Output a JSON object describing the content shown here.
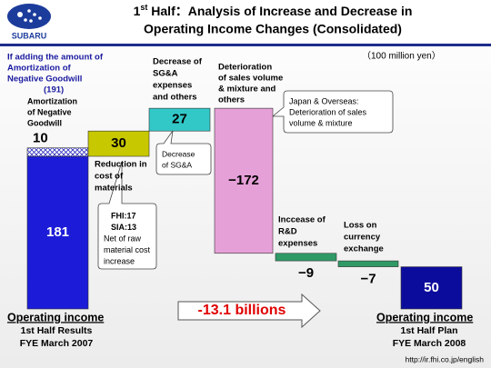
{
  "header": {
    "logo": "SUBARU",
    "title_num": "1",
    "title_sup": "st",
    "title_line1": " Half：Analysis of Increase and Decrease in",
    "title_line2": "Operating Income Changes (Consolidated)"
  },
  "chart_data": {
    "type": "waterfall",
    "unit_label": "（100 million yen）",
    "values": [
      181,
      30,
      27,
      -172,
      -9,
      -7,
      50
    ],
    "value_labels": [
      "181",
      "30",
      "27",
      "−172",
      "−9",
      "−7",
      "50"
    ],
    "kinds": [
      "total",
      "delta",
      "delta",
      "delta",
      "delta",
      "delta",
      "total"
    ],
    "colors": [
      "#1c1cd8",
      "#c8c800",
      "#33c8c8",
      "#e6a0d8",
      "#2f9a66",
      "#2f9a66",
      "#0c0c9c"
    ],
    "amortization": {
      "value": 10,
      "label": "10",
      "lines": [
        "Amortization",
        "of Negative",
        "Goodwill"
      ]
    },
    "goodwill_note": {
      "lines": [
        "If adding the amount of",
        "Amortization of",
        "Negative Goodwill"
      ],
      "total": "(191)"
    },
    "annotations": {
      "materials": [
        "Reduction in",
        "cost of",
        "materials"
      ],
      "materials_box": [
        "FHI:17",
        "SIA:13",
        "Net of raw",
        "material cost",
        "increase"
      ],
      "sga": [
        "Decrease of",
        "SG&A",
        "expenses",
        "and others"
      ],
      "sga_box": [
        "Decrease",
        "of SG&A"
      ],
      "sales": [
        "Deterioration",
        "of sales volume",
        "& mixture and",
        "others"
      ],
      "sales_box": [
        "Japan & Overseas:",
        "Deterioration of sales",
        "volume & mixture"
      ],
      "rd": [
        "Inccease of",
        "R&D",
        "expenses"
      ],
      "fx": [
        "Loss on",
        "currency",
        "exchange"
      ]
    },
    "start_label": [
      "Operating income",
      "1st Half Results",
      "FYE March 2007"
    ],
    "end_label": [
      "Operating income",
      "1st Half Plan",
      "FYE March 2008"
    ],
    "change": "-13.1 billions"
  },
  "footer": {
    "url": "http://ir.fhi.co.jp/english"
  }
}
